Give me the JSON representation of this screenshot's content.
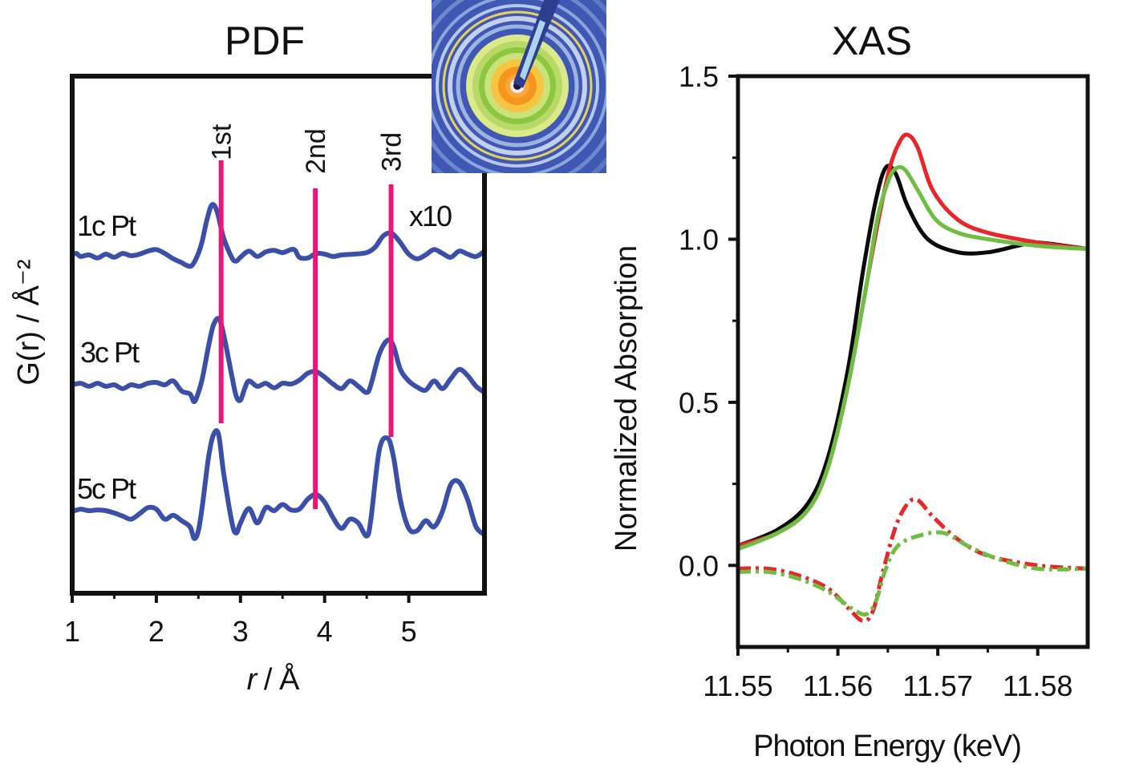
{
  "colors": {
    "pdf_trace": "#3a4fa8",
    "shell_marker": "#e8167a",
    "xas_black": "#0a0a0a",
    "xas_red": "#e8262a",
    "xas_green": "#6fbe44",
    "frame": "#111111"
  },
  "inset_image": {
    "icon": "diffraction-pattern-image",
    "colors": [
      "#3f58b4",
      "#7ea0d8",
      "#c9e27a",
      "#8dc63f",
      "#f0b23a",
      "#f7941d"
    ]
  },
  "chart_data": [
    {
      "id": "pdf",
      "type": "line",
      "title": "PDF",
      "xlabel_italic": "r",
      "xlabel_rest": " / Å",
      "ylabel": "G(r) / Å⁻²",
      "xlim": [
        1,
        5.9
      ],
      "x_ticks": [
        1,
        2,
        3,
        4,
        5
      ],
      "x_tick_labels": [
        "1",
        "2",
        "3",
        "4",
        "5"
      ],
      "y_ticks_shown": false,
      "scale_note": "x10",
      "series": [
        {
          "name": "1c Pt",
          "baseline": 0,
          "points": [
            [
              1,
              0
            ],
            [
              1.05,
              0.02
            ],
            [
              1.1,
              -0.02
            ],
            [
              1.2,
              0
            ],
            [
              1.3,
              -0.04
            ],
            [
              1.4,
              0.01
            ],
            [
              1.5,
              -0.03
            ],
            [
              1.6,
              0.02
            ],
            [
              1.7,
              -0.01
            ],
            [
              1.8,
              0.01
            ],
            [
              1.9,
              0.05
            ],
            [
              2.0,
              0.07
            ],
            [
              2.1,
              0.02
            ],
            [
              2.2,
              -0.05
            ],
            [
              2.3,
              -0.1
            ],
            [
              2.35,
              -0.13
            ],
            [
              2.42,
              -0.14
            ],
            [
              2.5,
              0.02
            ],
            [
              2.55,
              0.2
            ],
            [
              2.6,
              0.45
            ],
            [
              2.66,
              0.65
            ],
            [
              2.72,
              0.57
            ],
            [
              2.8,
              0.22
            ],
            [
              2.9,
              -0.04
            ],
            [
              2.95,
              -0.08
            ],
            [
              3.0,
              -0.03
            ],
            [
              3.1,
              0.05
            ],
            [
              3.2,
              -0.02
            ],
            [
              3.3,
              0.04
            ],
            [
              3.4,
              0.06
            ],
            [
              3.5,
              0.03
            ],
            [
              3.6,
              0.07
            ],
            [
              3.65,
              0.06
            ],
            [
              3.7,
              -0.03
            ],
            [
              3.8,
              -0.04
            ],
            [
              3.9,
              0.02
            ],
            [
              4.0,
              0.01
            ],
            [
              4.1,
              -0.02
            ],
            [
              4.2,
              0
            ],
            [
              4.35,
              0.01
            ],
            [
              4.5,
              0.03
            ],
            [
              4.6,
              0.1
            ],
            [
              4.7,
              0.25
            ],
            [
              4.8,
              0.28
            ],
            [
              4.9,
              0.16
            ],
            [
              5.0,
              0.01
            ],
            [
              5.1,
              -0.05
            ],
            [
              5.2,
              0
            ],
            [
              5.3,
              0.07
            ],
            [
              5.4,
              0.02
            ],
            [
              5.5,
              -0.03
            ],
            [
              5.6,
              0.05
            ],
            [
              5.7,
              0.01
            ],
            [
              5.8,
              -0.02
            ],
            [
              5.9,
              0.05
            ]
          ]
        },
        {
          "name": "3c Pt",
          "baseline": 0,
          "points": [
            [
              1,
              0
            ],
            [
              1.1,
              0.02
            ],
            [
              1.2,
              -0.02
            ],
            [
              1.3,
              0.02
            ],
            [
              1.4,
              -0.02
            ],
            [
              1.5,
              0
            ],
            [
              1.6,
              -0.05
            ],
            [
              1.7,
              0
            ],
            [
              1.8,
              -0.02
            ],
            [
              1.9,
              0.02
            ],
            [
              2.0,
              0.03
            ],
            [
              2.1,
              0
            ],
            [
              2.2,
              0.05
            ],
            [
              2.3,
              -0.08
            ],
            [
              2.4,
              -0.12
            ],
            [
              2.45,
              -0.22
            ],
            [
              2.5,
              -0.1
            ],
            [
              2.55,
              0.1
            ],
            [
              2.62,
              0.5
            ],
            [
              2.68,
              0.78
            ],
            [
              2.75,
              0.85
            ],
            [
              2.82,
              0.55
            ],
            [
              2.9,
              0.1
            ],
            [
              2.95,
              -0.15
            ],
            [
              3.0,
              -0.2
            ],
            [
              3.05,
              -0.05
            ],
            [
              3.1,
              0.05
            ],
            [
              3.2,
              -0.02
            ],
            [
              3.3,
              0.02
            ],
            [
              3.4,
              -0.04
            ],
            [
              3.5,
              0.02
            ],
            [
              3.6,
              0.01
            ],
            [
              3.7,
              0.06
            ],
            [
              3.8,
              0.15
            ],
            [
              3.9,
              0.17
            ],
            [
              4.0,
              0.1
            ],
            [
              4.1,
              0.01
            ],
            [
              4.2,
              -0.05
            ],
            [
              4.3,
              0.05
            ],
            [
              4.4,
              -0.02
            ],
            [
              4.5,
              -0.1
            ],
            [
              4.55,
              0
            ],
            [
              4.65,
              0.4
            ],
            [
              4.75,
              0.58
            ],
            [
              4.82,
              0.5
            ],
            [
              4.9,
              0.2
            ],
            [
              5.0,
              0.05
            ],
            [
              5.1,
              -0.03
            ],
            [
              5.2,
              -0.07
            ],
            [
              5.3,
              0.05
            ],
            [
              5.4,
              -0.05
            ],
            [
              5.5,
              0.08
            ],
            [
              5.6,
              0.2
            ],
            [
              5.7,
              0.12
            ],
            [
              5.8,
              -0.02
            ],
            [
              5.9,
              -0.1
            ]
          ]
        },
        {
          "name": "5c Pt",
          "baseline": 0,
          "points": [
            [
              1,
              0
            ],
            [
              1.1,
              0.03
            ],
            [
              1.2,
              0.01
            ],
            [
              1.3,
              0.02
            ],
            [
              1.4,
              0.01
            ],
            [
              1.5,
              -0.02
            ],
            [
              1.6,
              -0.06
            ],
            [
              1.7,
              -0.1
            ],
            [
              1.8,
              -0.03
            ],
            [
              1.9,
              0.05
            ],
            [
              2.0,
              0.03
            ],
            [
              2.1,
              -0.1
            ],
            [
              2.2,
              -0.05
            ],
            [
              2.3,
              -0.12
            ],
            [
              2.4,
              -0.2
            ],
            [
              2.45,
              -0.35
            ],
            [
              2.5,
              -0.25
            ],
            [
              2.55,
              0.1
            ],
            [
              2.62,
              0.7
            ],
            [
              2.68,
              1.0
            ],
            [
              2.74,
              1.0
            ],
            [
              2.8,
              0.5
            ],
            [
              2.9,
              -0.15
            ],
            [
              2.95,
              -0.28
            ],
            [
              3.0,
              -0.15
            ],
            [
              3.1,
              0.04
            ],
            [
              3.2,
              -0.15
            ],
            [
              3.3,
              0.05
            ],
            [
              3.4,
              0.01
            ],
            [
              3.5,
              0.09
            ],
            [
              3.6,
              0.02
            ],
            [
              3.7,
              0.03
            ],
            [
              3.8,
              0.16
            ],
            [
              3.9,
              0.22
            ],
            [
              4.0,
              0.12
            ],
            [
              4.1,
              -0.08
            ],
            [
              4.2,
              -0.22
            ],
            [
              4.3,
              -0.1
            ],
            [
              4.4,
              -0.15
            ],
            [
              4.5,
              -0.32
            ],
            [
              4.55,
              -0.1
            ],
            [
              4.65,
              0.8
            ],
            [
              4.75,
              0.95
            ],
            [
              4.82,
              0.7
            ],
            [
              4.9,
              0.15
            ],
            [
              5.0,
              -0.22
            ],
            [
              5.1,
              -0.25
            ],
            [
              5.2,
              -0.12
            ],
            [
              5.3,
              -0.2
            ],
            [
              5.4,
              0
            ],
            [
              5.5,
              0.35
            ],
            [
              5.6,
              0.38
            ],
            [
              5.7,
              0.15
            ],
            [
              5.8,
              -0.2
            ],
            [
              5.9,
              -0.3
            ]
          ]
        }
      ],
      "shell_markers": [
        {
          "label": "1st",
          "x": 2.77
        },
        {
          "label": "2nd",
          "x": 3.89
        },
        {
          "label": "3rd",
          "x": 4.79
        }
      ]
    },
    {
      "id": "xas",
      "type": "line",
      "title": "XAS",
      "xlabel": "Photon Energy (keV)",
      "ylabel": "Normalized Absorption",
      "xlim": [
        11.55,
        11.585
      ],
      "ylim": [
        -0.25,
        1.5
      ],
      "x_ticks": [
        11.55,
        11.56,
        11.57,
        11.58
      ],
      "x_tick_labels": [
        "11.55",
        "11.56",
        "11.57",
        "11.58"
      ],
      "y_ticks": [
        0.0,
        0.5,
        1.0,
        1.5
      ],
      "y_tick_labels": [
        "0.0",
        "0.5",
        "1.0",
        "1.5"
      ],
      "series": [
        {
          "color_key": "xas_black",
          "dash": "solid",
          "points": [
            [
              11.55,
              0.06
            ],
            [
              11.554,
              0.11
            ],
            [
              11.557,
              0.19
            ],
            [
              11.559,
              0.33
            ],
            [
              11.561,
              0.6
            ],
            [
              11.5625,
              0.9
            ],
            [
              11.5638,
              1.12
            ],
            [
              11.5648,
              1.22
            ],
            [
              11.5658,
              1.2
            ],
            [
              11.567,
              1.1
            ],
            [
              11.569,
              1.0
            ],
            [
              11.572,
              0.96
            ],
            [
              11.575,
              0.96
            ],
            [
              11.578,
              0.98
            ],
            [
              11.58,
              0.99
            ],
            [
              11.585,
              0.97
            ]
          ]
        },
        {
          "color_key": "xas_red",
          "dash": "solid",
          "points": [
            [
              11.55,
              0.06
            ],
            [
              11.554,
              0.1
            ],
            [
              11.557,
              0.17
            ],
            [
              11.559,
              0.3
            ],
            [
              11.561,
              0.55
            ],
            [
              11.5628,
              0.85
            ],
            [
              11.564,
              1.05
            ],
            [
              11.5652,
              1.22
            ],
            [
              11.5662,
              1.3
            ],
            [
              11.567,
              1.32
            ],
            [
              11.568,
              1.28
            ],
            [
              11.5695,
              1.15
            ],
            [
              11.572,
              1.06
            ],
            [
              11.575,
              1.02
            ],
            [
              11.58,
              0.99
            ],
            [
              11.585,
              0.97
            ]
          ]
        },
        {
          "color_key": "xas_green",
          "dash": "solid",
          "points": [
            [
              11.55,
              0.05
            ],
            [
              11.554,
              0.1
            ],
            [
              11.557,
              0.17
            ],
            [
              11.559,
              0.3
            ],
            [
              11.561,
              0.55
            ],
            [
              11.5628,
              0.85
            ],
            [
              11.564,
              1.07
            ],
            [
              11.5652,
              1.19
            ],
            [
              11.566,
              1.22
            ],
            [
              11.5668,
              1.21
            ],
            [
              11.568,
              1.15
            ],
            [
              11.5698,
              1.06
            ],
            [
              11.572,
              1.02
            ],
            [
              11.575,
              1.0
            ],
            [
              11.58,
              0.98
            ],
            [
              11.585,
              0.97
            ]
          ]
        },
        {
          "color_key": "xas_red",
          "dash": "dashdot",
          "points": [
            [
              11.55,
              -0.01
            ],
            [
              11.553,
              -0.01
            ],
            [
              11.556,
              -0.03
            ],
            [
              11.559,
              -0.07
            ],
            [
              11.561,
              -0.13
            ],
            [
              11.5625,
              -0.17
            ],
            [
              11.5635,
              -0.14
            ],
            [
              11.5645,
              -0.02
            ],
            [
              11.5658,
              0.12
            ],
            [
              11.567,
              0.19
            ],
            [
              11.568,
              0.2
            ],
            [
              11.5695,
              0.15
            ],
            [
              11.572,
              0.08
            ],
            [
              11.575,
              0.03
            ],
            [
              11.58,
              0.0
            ],
            [
              11.585,
              -0.01
            ]
          ]
        },
        {
          "color_key": "xas_green",
          "dash": "dashdot",
          "points": [
            [
              11.55,
              -0.02
            ],
            [
              11.553,
              -0.02
            ],
            [
              11.556,
              -0.04
            ],
            [
              11.559,
              -0.08
            ],
            [
              11.5613,
              -0.13
            ],
            [
              11.5628,
              -0.15
            ],
            [
              11.5638,
              -0.11
            ],
            [
              11.5648,
              -0.01
            ],
            [
              11.566,
              0.06
            ],
            [
              11.568,
              0.09
            ],
            [
              11.5705,
              0.1
            ],
            [
              11.573,
              0.06
            ],
            [
              11.576,
              0.02
            ],
            [
              11.58,
              -0.01
            ],
            [
              11.585,
              -0.01
            ]
          ]
        }
      ]
    }
  ]
}
